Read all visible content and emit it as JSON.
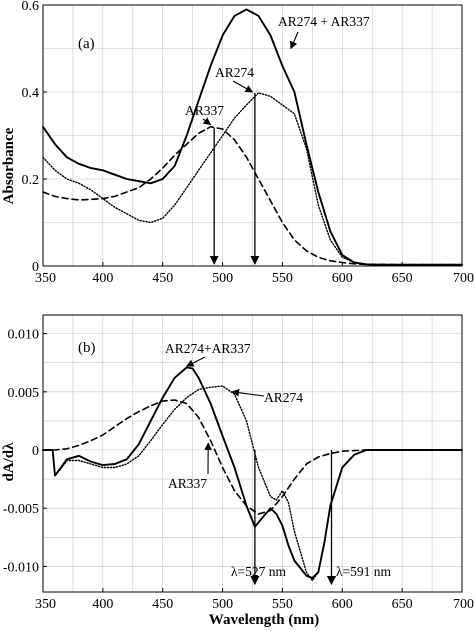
{
  "chart_data": [
    {
      "type": "line",
      "panel_label": "(a)",
      "xlabel": "",
      "ylabel": "Absorbance",
      "xlim": [
        350,
        700
      ],
      "ylim": [
        0,
        0.6
      ],
      "x_ticks": [
        350,
        400,
        450,
        500,
        550,
        600,
        650,
        700
      ],
      "y_ticks": [
        {
          "value": 0,
          "label": "0"
        },
        {
          "value": 0.2,
          "label": "0.2"
        },
        {
          "value": 0.4,
          "label": "0.4"
        },
        {
          "value": 0.6,
          "label": "0.6"
        }
      ],
      "grid": true,
      "series": [
        {
          "name": "AR274 + AR337",
          "style": "solid",
          "x": [
            350,
            360,
            370,
            380,
            390,
            400,
            410,
            420,
            430,
            440,
            450,
            460,
            470,
            480,
            490,
            500,
            510,
            520,
            530,
            540,
            550,
            560,
            570,
            580,
            590,
            600,
            610,
            620,
            630,
            650,
            700
          ],
          "y": [
            0.32,
            0.28,
            0.25,
            0.235,
            0.225,
            0.22,
            0.21,
            0.2,
            0.195,
            0.19,
            0.2,
            0.23,
            0.3,
            0.38,
            0.46,
            0.53,
            0.575,
            0.59,
            0.575,
            0.53,
            0.46,
            0.4,
            0.28,
            0.17,
            0.08,
            0.025,
            0.008,
            0.004,
            0.003,
            0.003,
            0.003
          ]
        },
        {
          "name": "AR274",
          "style": "dotted",
          "x": [
            350,
            360,
            370,
            380,
            390,
            400,
            410,
            420,
            430,
            440,
            450,
            460,
            470,
            480,
            490,
            500,
            510,
            520,
            530,
            540,
            550,
            560,
            570,
            580,
            590,
            600,
            610,
            620,
            650,
            700
          ],
          "y": [
            0.25,
            0.22,
            0.2,
            0.19,
            0.175,
            0.155,
            0.135,
            0.12,
            0.105,
            0.1,
            0.11,
            0.14,
            0.18,
            0.22,
            0.26,
            0.3,
            0.34,
            0.37,
            0.398,
            0.39,
            0.37,
            0.35,
            0.27,
            0.14,
            0.06,
            0.02,
            0.008,
            0.004,
            0.003,
            0.003
          ]
        },
        {
          "name": "AR337",
          "style": "dashed",
          "x": [
            350,
            360,
            370,
            380,
            390,
            400,
            410,
            420,
            430,
            440,
            450,
            460,
            470,
            480,
            490,
            500,
            510,
            520,
            530,
            540,
            550,
            560,
            570,
            580,
            590,
            600,
            610,
            620,
            650,
            700
          ],
          "y": [
            0.17,
            0.16,
            0.155,
            0.152,
            0.153,
            0.155,
            0.16,
            0.17,
            0.18,
            0.2,
            0.225,
            0.255,
            0.28,
            0.305,
            0.32,
            0.315,
            0.29,
            0.25,
            0.2,
            0.15,
            0.1,
            0.06,
            0.035,
            0.02,
            0.012,
            0.008,
            0.005,
            0.004,
            0.003,
            0.003
          ]
        }
      ],
      "annotations": [
        {
          "text": "AR274 + AR337",
          "target": [
            557,
            0.5
          ]
        },
        {
          "text": "AR274",
          "target": [
            525,
            0.4
          ]
        },
        {
          "text": "AR337",
          "target": [
            490,
            0.325
          ]
        }
      ],
      "vertical_markers": [
        {
          "x": 493,
          "from": 0.318,
          "to": 0
        },
        {
          "x": 527,
          "from": 0.398,
          "to": 0
        }
      ]
    },
    {
      "type": "line",
      "panel_label": "(b)",
      "xlabel": "Wavelength (nm)",
      "ylabel": "dA/dλ",
      "xlim": [
        350,
        700
      ],
      "ylim": [
        -0.0122,
        0.0116
      ],
      "x_ticks": [
        350,
        400,
        450,
        500,
        550,
        600,
        650,
        700
      ],
      "y_ticks": [
        {
          "value": 0.01,
          "label": "0.010"
        },
        {
          "value": 0.005,
          "label": "0.005"
        },
        {
          "value": 0,
          "label": "0"
        },
        {
          "value": -0.005,
          "label": "-0.005"
        },
        {
          "value": -0.01,
          "label": "-0.010"
        }
      ],
      "grid": true,
      "series": [
        {
          "name": "AR274+AR337",
          "style": "solid",
          "x": [
            350,
            355,
            358,
            360,
            365,
            370,
            380,
            390,
            400,
            410,
            420,
            430,
            440,
            450,
            460,
            470,
            475,
            480,
            490,
            500,
            510,
            520,
            527,
            535,
            540,
            545,
            550,
            555,
            560,
            570,
            575,
            580,
            585,
            590,
            600,
            610,
            620,
            630,
            650,
            700
          ],
          "y": [
            0,
            0,
            0,
            -0.0022,
            -0.0015,
            -0.0008,
            -0.0005,
            -0.001,
            -0.0013,
            -0.0012,
            -0.0008,
            0.0005,
            0.0025,
            0.0045,
            0.0062,
            0.0071,
            0.007,
            0.0062,
            0.004,
            0.0012,
            -0.0015,
            -0.0048,
            -0.0066,
            -0.0056,
            -0.005,
            -0.0055,
            -0.0065,
            -0.0082,
            -0.0095,
            -0.0108,
            -0.011,
            -0.0105,
            -0.008,
            -0.0048,
            -0.0015,
            -0.0004,
            0,
            0,
            0,
            0
          ]
        },
        {
          "name": "AR274",
          "style": "dotted",
          "x": [
            350,
            355,
            358,
            360,
            365,
            370,
            380,
            390,
            400,
            410,
            420,
            430,
            440,
            450,
            460,
            470,
            480,
            490,
            500,
            510,
            520,
            530,
            540,
            545,
            550,
            555,
            560,
            570,
            575,
            580,
            585,
            590,
            600,
            610,
            620,
            650,
            700
          ],
          "y": [
            0,
            0,
            0,
            -0.0022,
            -0.0016,
            -0.0009,
            -0.0009,
            -0.0012,
            -0.0015,
            -0.0015,
            -0.0012,
            -0.0005,
            0.0008,
            0.0022,
            0.0035,
            0.0045,
            0.0052,
            0.0054,
            0.0055,
            0.0048,
            0.0025,
            -0.0015,
            -0.004,
            -0.0043,
            -0.0035,
            -0.0045,
            -0.007,
            -0.0105,
            -0.0112,
            -0.0105,
            -0.008,
            -0.0048,
            -0.0015,
            -0.0004,
            0,
            0,
            0
          ]
        },
        {
          "name": "AR337",
          "style": "dashed",
          "x": [
            350,
            360,
            370,
            380,
            390,
            400,
            410,
            420,
            430,
            440,
            450,
            460,
            470,
            480,
            490,
            500,
            510,
            520,
            530,
            540,
            550,
            560,
            570,
            580,
            590,
            600,
            620,
            650,
            700
          ],
          "y": [
            0,
            0,
            0.0001,
            0.0004,
            0.0008,
            0.0013,
            0.002,
            0.0027,
            0.0033,
            0.0038,
            0.0042,
            0.0043,
            0.004,
            0.0028,
            0.0008,
            -0.0015,
            -0.0035,
            -0.0048,
            -0.0055,
            -0.0052,
            -0.004,
            -0.0025,
            -0.0012,
            -0.0006,
            -0.0003,
            -0.0001,
            0,
            0,
            0
          ]
        }
      ],
      "annotations": [
        {
          "text": "AR274+AR337",
          "target": [
            470,
            0.0072
          ]
        },
        {
          "text": "AR274",
          "target": [
            508,
            0.005
          ]
        },
        {
          "text": "AR337",
          "target": [
            488,
            0.0006
          ]
        },
        {
          "text": "λ=527 nm",
          "target": [
            527,
            -0.0117
          ]
        },
        {
          "text": "λ=591 nm",
          "target": [
            591,
            -0.0117
          ]
        }
      ],
      "vertical_markers": [
        {
          "x": 527,
          "from": 0,
          "to": -0.0117
        },
        {
          "x": 591,
          "from": 0,
          "to": -0.0117
        }
      ]
    }
  ]
}
